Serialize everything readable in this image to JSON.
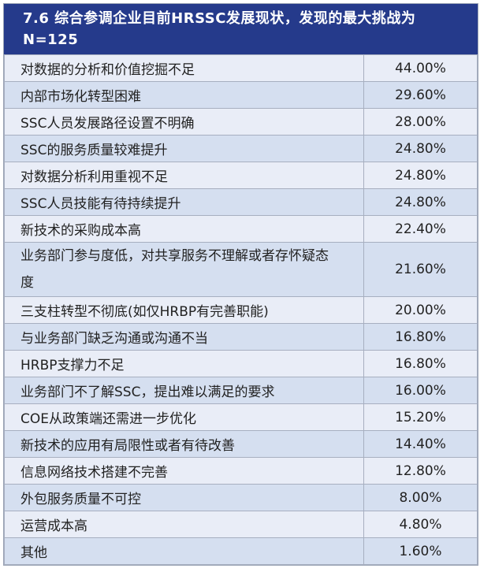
{
  "title": "7.6   综合参调企业目前HRSSC发展现状，发现的最大挑战为 N=125",
  "rows": [
    {
      "item": "对数据的分析和价值挖掘不足",
      "value": "44.00%"
    },
    {
      "item": "内部市场化转型困难",
      "value": "29.60%"
    },
    {
      "item": "SSC人员发展路径设置不明确",
      "value": "28.00%"
    },
    {
      "item": "SSC的服务质量较难提升",
      "value": "24.80%"
    },
    {
      "item": "对数据分析利用重视不足",
      "value": "24.80%"
    },
    {
      "item": "SSC人员技能有待持续提升",
      "value": "24.80%"
    },
    {
      "item": "新技术的采购成本高",
      "value": "22.40%"
    },
    {
      "item": "业务部门参与度低，对共享服务不理解或者存怀疑态度",
      "value": "21.60%"
    },
    {
      "item": "三支柱转型不彻底(如仅HRBP有完善职能)",
      "value": "20.00%"
    },
    {
      "item": "与业务部门缺乏沟通或沟通不当",
      "value": "16.80%"
    },
    {
      "item": "HRBP支撑力不足",
      "value": "16.80%"
    },
    {
      "item": "业务部门不了解SSC，提出难以满足的要求",
      "value": "16.00%"
    },
    {
      "item": "COE从政策端还需进一步优化",
      "value": "15.20%"
    },
    {
      "item": "新技术的应用有局限性或者有待改善",
      "value": "14.40%"
    },
    {
      "item": "信息网络技术搭建不完善",
      "value": "12.80%"
    },
    {
      "item": "外包服务质量不可控",
      "value": "8.00%"
    },
    {
      "item": "运营成本高",
      "value": "4.80%"
    },
    {
      "item": "其他",
      "value": "1.60%"
    }
  ],
  "colors": {
    "header": "#253a8b",
    "row_light": "#e9edf7",
    "row_dark": "#d5dff0"
  }
}
